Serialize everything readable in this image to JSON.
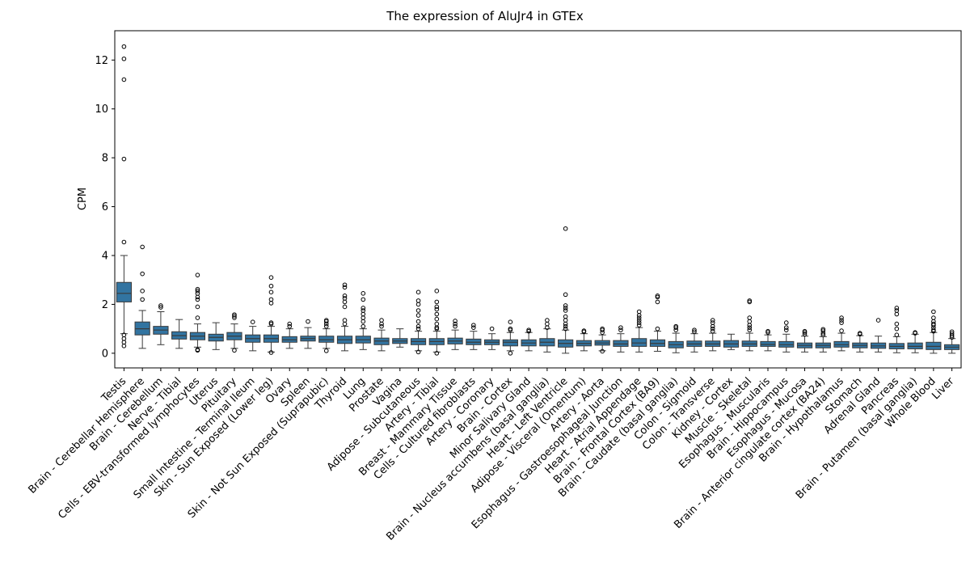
{
  "chart_data": {
    "type": "box",
    "title": "The expression of AluJr4 in GTEx",
    "xlabel": "",
    "ylabel": "CPM",
    "ylim": [
      -0.6,
      13.2
    ],
    "yticks": [
      0,
      2,
      4,
      6,
      8,
      10,
      12
    ],
    "grid": false,
    "legend": "none",
    "box_color": "#3274a1",
    "line_color": "#3a3a3a",
    "categories": [
      "Testis",
      "Brain - Cerebellar Hemisphere",
      "Brain - Cerebellum",
      "Nerve - Tibial",
      "Cells - EBV-transformed lymphocytes",
      "Uterus",
      "Pituitary",
      "Small Intestine - Terminal Ileum",
      "Skin - Sun Exposed (Lower leg)",
      "Ovary",
      "Spleen",
      "Skin - Not Sun Exposed (Suprapubic)",
      "Thyroid",
      "Lung",
      "Prostate",
      "Vagina",
      "Adipose - Subcutaneous",
      "Artery - Tibial",
      "Breast - Mammary Tissue",
      "Cells - Cultured fibroblasts",
      "Artery - Coronary",
      "Brain - Cortex",
      "Minor Salivary Gland",
      "Brain - Nucleus accumbens (basal ganglia)",
      "Heart - Left Ventricle",
      "Adipose - Visceral (Omentum)",
      "Artery - Aorta",
      "Esophagus - Gastroesophageal Junction",
      "Heart - Atrial Appendage",
      "Brain - Frontal Cortex (BA9)",
      "Brain - Caudate (basal ganglia)",
      "Colon - Sigmoid",
      "Colon - Transverse",
      "Kidney - Cortex",
      "Muscle - Skeletal",
      "Esophagus - Muscularis",
      "Brain - Hippocampus",
      "Esophagus - Mucosa",
      "Brain - Anterior cingulate cortex (BA24)",
      "Brain - Hypothalamus",
      "Stomach",
      "Adrenal Gland",
      "Pancreas",
      "Brain - Putamen (basal ganglia)",
      "Whole Blood",
      "Liver"
    ],
    "boxes": [
      {
        "whislo": 0.8,
        "q1": 2.1,
        "med": 2.45,
        "q3": 2.9,
        "whishi": 4.0,
        "fliers": [
          0.3,
          0.45,
          0.6,
          0.75,
          4.55,
          7.95,
          11.2,
          12.05,
          12.55
        ]
      },
      {
        "whislo": 0.2,
        "q1": 0.75,
        "med": 1.0,
        "q3": 1.28,
        "whislo_note": "",
        "whishi": 1.75,
        "fliers": [
          2.2,
          2.55,
          3.25,
          4.35
        ]
      },
      {
        "whislo": 0.35,
        "q1": 0.78,
        "med": 0.95,
        "q3": 1.1,
        "whishi": 1.7,
        "fliers": [
          1.88,
          1.95
        ]
      },
      {
        "whislo": 0.2,
        "q1": 0.58,
        "med": 0.72,
        "q3": 0.88,
        "whishi": 1.38,
        "fliers": []
      },
      {
        "whislo": 0.25,
        "q1": 0.55,
        "med": 0.7,
        "q3": 0.85,
        "whishi": 1.2,
        "fliers": [
          0.12,
          0.15,
          1.45,
          1.9,
          2.2,
          2.3,
          2.45,
          2.55,
          2.62,
          3.2
        ]
      },
      {
        "whislo": 0.15,
        "q1": 0.5,
        "med": 0.65,
        "q3": 0.78,
        "whishi": 1.25,
        "fliers": []
      },
      {
        "whislo": 0.2,
        "q1": 0.55,
        "med": 0.7,
        "q3": 0.85,
        "whishi": 1.2,
        "fliers": [
          0.12,
          1.45,
          1.52,
          1.58
        ]
      },
      {
        "whislo": 0.1,
        "q1": 0.45,
        "med": 0.6,
        "q3": 0.75,
        "whishi": 1.1,
        "fliers": [
          1.28
        ]
      },
      {
        "whislo": 0.05,
        "q1": 0.45,
        "med": 0.6,
        "q3": 0.75,
        "whishi": 1.1,
        "fliers": [
          0.03,
          1.2,
          1.25,
          2.05,
          2.2,
          2.5,
          2.75,
          3.1
        ]
      },
      {
        "whislo": 0.2,
        "q1": 0.45,
        "med": 0.55,
        "q3": 0.68,
        "whishi": 1.0,
        "fliers": [
          1.1,
          1.2
        ]
      },
      {
        "whislo": 0.2,
        "q1": 0.5,
        "med": 0.6,
        "q3": 0.7,
        "whishi": 1.05,
        "fliers": [
          1.3
        ]
      },
      {
        "whislo": 0.2,
        "q1": 0.45,
        "med": 0.55,
        "q3": 0.7,
        "whishi": 1.0,
        "fliers": [
          0.1,
          1.1,
          1.2,
          1.3,
          1.35
        ]
      },
      {
        "whislo": 0.1,
        "q1": 0.4,
        "med": 0.55,
        "q3": 0.7,
        "whishi": 1.1,
        "fliers": [
          1.2,
          1.35,
          1.9,
          2.1,
          2.25,
          2.35,
          2.7,
          2.8
        ]
      },
      {
        "whislo": 0.15,
        "q1": 0.42,
        "med": 0.55,
        "q3": 0.7,
        "whishi": 1.0,
        "fliers": [
          1.1,
          1.3,
          1.45,
          1.6,
          1.75,
          1.85,
          2.2,
          2.45
        ]
      },
      {
        "whislo": 0.1,
        "q1": 0.35,
        "med": 0.5,
        "q3": 0.62,
        "whishi": 0.95,
        "fliers": [
          1.1,
          1.2,
          1.35
        ]
      },
      {
        "whislo": 0.25,
        "q1": 0.4,
        "med": 0.5,
        "q3": 0.6,
        "whishi": 1.0,
        "fliers": []
      },
      {
        "whislo": 0.1,
        "q1": 0.35,
        "med": 0.48,
        "q3": 0.6,
        "whishi": 0.9,
        "fliers": [
          0.05,
          1.0,
          1.1,
          1.3,
          1.55,
          1.75,
          2.0,
          2.15,
          2.5
        ]
      },
      {
        "whislo": 0.05,
        "q1": 0.35,
        "med": 0.48,
        "q3": 0.6,
        "whishi": 0.9,
        "fliers": [
          0.0,
          1.0,
          1.05,
          1.2,
          1.4,
          1.6,
          1.8,
          1.9,
          2.1,
          2.55
        ]
      },
      {
        "whislo": 0.15,
        "q1": 0.38,
        "med": 0.5,
        "q3": 0.62,
        "whishi": 0.95,
        "fliers": [
          1.1,
          1.2,
          1.32
        ]
      },
      {
        "whislo": 0.15,
        "q1": 0.35,
        "med": 0.45,
        "q3": 0.58,
        "whishi": 0.9,
        "fliers": [
          1.05,
          1.15
        ]
      },
      {
        "whislo": 0.15,
        "q1": 0.35,
        "med": 0.45,
        "q3": 0.55,
        "whishi": 0.8,
        "fliers": [
          1.0
        ]
      },
      {
        "whislo": 0.1,
        "q1": 0.3,
        "med": 0.45,
        "q3": 0.55,
        "whishi": 0.85,
        "fliers": [
          0.0,
          0.95,
          1.0,
          1.28
        ]
      },
      {
        "whislo": 0.1,
        "q1": 0.3,
        "med": 0.42,
        "q3": 0.55,
        "whishi": 0.85,
        "fliers": [
          0.9,
          0.95
        ]
      },
      {
        "whislo": 0.05,
        "q1": 0.3,
        "med": 0.45,
        "q3": 0.6,
        "whishi": 1.0,
        "fliers": [
          1.05,
          1.2,
          1.35
        ]
      },
      {
        "whislo": 0.0,
        "q1": 0.25,
        "med": 0.4,
        "q3": 0.55,
        "whishi": 0.95,
        "fliers": [
          1.0,
          1.1,
          1.2,
          1.35,
          1.5,
          1.75,
          1.85,
          1.95,
          2.4,
          5.1
        ]
      },
      {
        "whislo": 0.1,
        "q1": 0.3,
        "med": 0.4,
        "q3": 0.52,
        "whishi": 0.8,
        "fliers": [
          0.88,
          0.92
        ]
      },
      {
        "whislo": 0.1,
        "q1": 0.33,
        "med": 0.42,
        "q3": 0.52,
        "whishi": 0.75,
        "fliers": [
          0.08,
          0.85,
          0.95,
          1.0
        ]
      },
      {
        "whislo": 0.05,
        "q1": 0.28,
        "med": 0.38,
        "q3": 0.52,
        "whishi": 0.8,
        "fliers": [
          0.95,
          1.05
        ]
      },
      {
        "whislo": 0.05,
        "q1": 0.28,
        "med": 0.42,
        "q3": 0.6,
        "whishi": 1.05,
        "fliers": [
          1.15,
          1.25,
          1.35,
          1.45,
          1.55,
          1.7
        ]
      },
      {
        "whislo": 0.08,
        "q1": 0.28,
        "med": 0.4,
        "q3": 0.55,
        "whishi": 0.9,
        "fliers": [
          1.0,
          2.1,
          2.3,
          2.35
        ]
      },
      {
        "whislo": 0.02,
        "q1": 0.22,
        "med": 0.35,
        "q3": 0.48,
        "whishi": 0.82,
        "fliers": [
          0.95,
          1.05,
          1.1
        ]
      },
      {
        "whislo": 0.05,
        "q1": 0.28,
        "med": 0.38,
        "q3": 0.5,
        "whishi": 0.8,
        "fliers": [
          0.88,
          0.95
        ]
      },
      {
        "whislo": 0.1,
        "q1": 0.28,
        "med": 0.38,
        "q3": 0.5,
        "whishi": 0.82,
        "fliers": [
          0.9,
          1.0,
          1.1,
          1.25,
          1.35
        ]
      },
      {
        "whislo": 0.15,
        "q1": 0.25,
        "med": 0.38,
        "q3": 0.52,
        "whishi": 0.78,
        "fliers": []
      },
      {
        "whislo": 0.1,
        "q1": 0.28,
        "med": 0.38,
        "q3": 0.5,
        "whishi": 0.82,
        "fliers": [
          0.95,
          1.05,
          1.15,
          1.3,
          1.45,
          2.1,
          2.15
        ]
      },
      {
        "whislo": 0.1,
        "q1": 0.28,
        "med": 0.36,
        "q3": 0.48,
        "whishi": 0.75,
        "fliers": [
          0.85,
          0.9
        ]
      },
      {
        "whislo": 0.05,
        "q1": 0.25,
        "med": 0.35,
        "q3": 0.48,
        "whishi": 0.78,
        "fliers": [
          0.95,
          1.05,
          1.25
        ]
      },
      {
        "whislo": 0.05,
        "q1": 0.22,
        "med": 0.32,
        "q3": 0.42,
        "whishi": 0.7,
        "fliers": [
          0.78,
          0.85,
          0.9
        ]
      },
      {
        "whislo": 0.05,
        "q1": 0.22,
        "med": 0.32,
        "q3": 0.42,
        "whishi": 0.68,
        "fliers": [
          0.75,
          0.82,
          0.92,
          0.98
        ]
      },
      {
        "whislo": 0.1,
        "q1": 0.25,
        "med": 0.35,
        "q3": 0.48,
        "whishi": 0.82,
        "fliers": [
          0.92,
          1.25,
          1.35,
          1.45
        ]
      },
      {
        "whislo": 0.05,
        "q1": 0.22,
        "med": 0.32,
        "q3": 0.42,
        "whishi": 0.72,
        "fliers": [
          0.78,
          0.82
        ]
      },
      {
        "whislo": 0.05,
        "q1": 0.2,
        "med": 0.3,
        "q3": 0.42,
        "whishi": 0.7,
        "fliers": [
          1.35
        ]
      },
      {
        "whislo": 0.02,
        "q1": 0.18,
        "med": 0.28,
        "q3": 0.4,
        "whishi": 0.68,
        "fliers": [
          0.75,
          1.0,
          1.2,
          1.6,
          1.75,
          1.85
        ]
      },
      {
        "whislo": 0.02,
        "q1": 0.18,
        "med": 0.28,
        "q3": 0.42,
        "whishi": 0.78,
        "fliers": [
          0.82,
          0.85
        ]
      },
      {
        "whislo": 0.0,
        "q1": 0.15,
        "med": 0.28,
        "q3": 0.45,
        "whishi": 0.85,
        "fliers": [
          0.9,
          0.95,
          1.05,
          1.15,
          1.2,
          1.3,
          1.45,
          1.7
        ]
      },
      {
        "whislo": 0.0,
        "q1": 0.15,
        "med": 0.25,
        "q3": 0.35,
        "whishi": 0.6,
        "fliers": [
          0.65,
          0.72,
          0.8,
          0.88
        ]
      }
    ]
  }
}
